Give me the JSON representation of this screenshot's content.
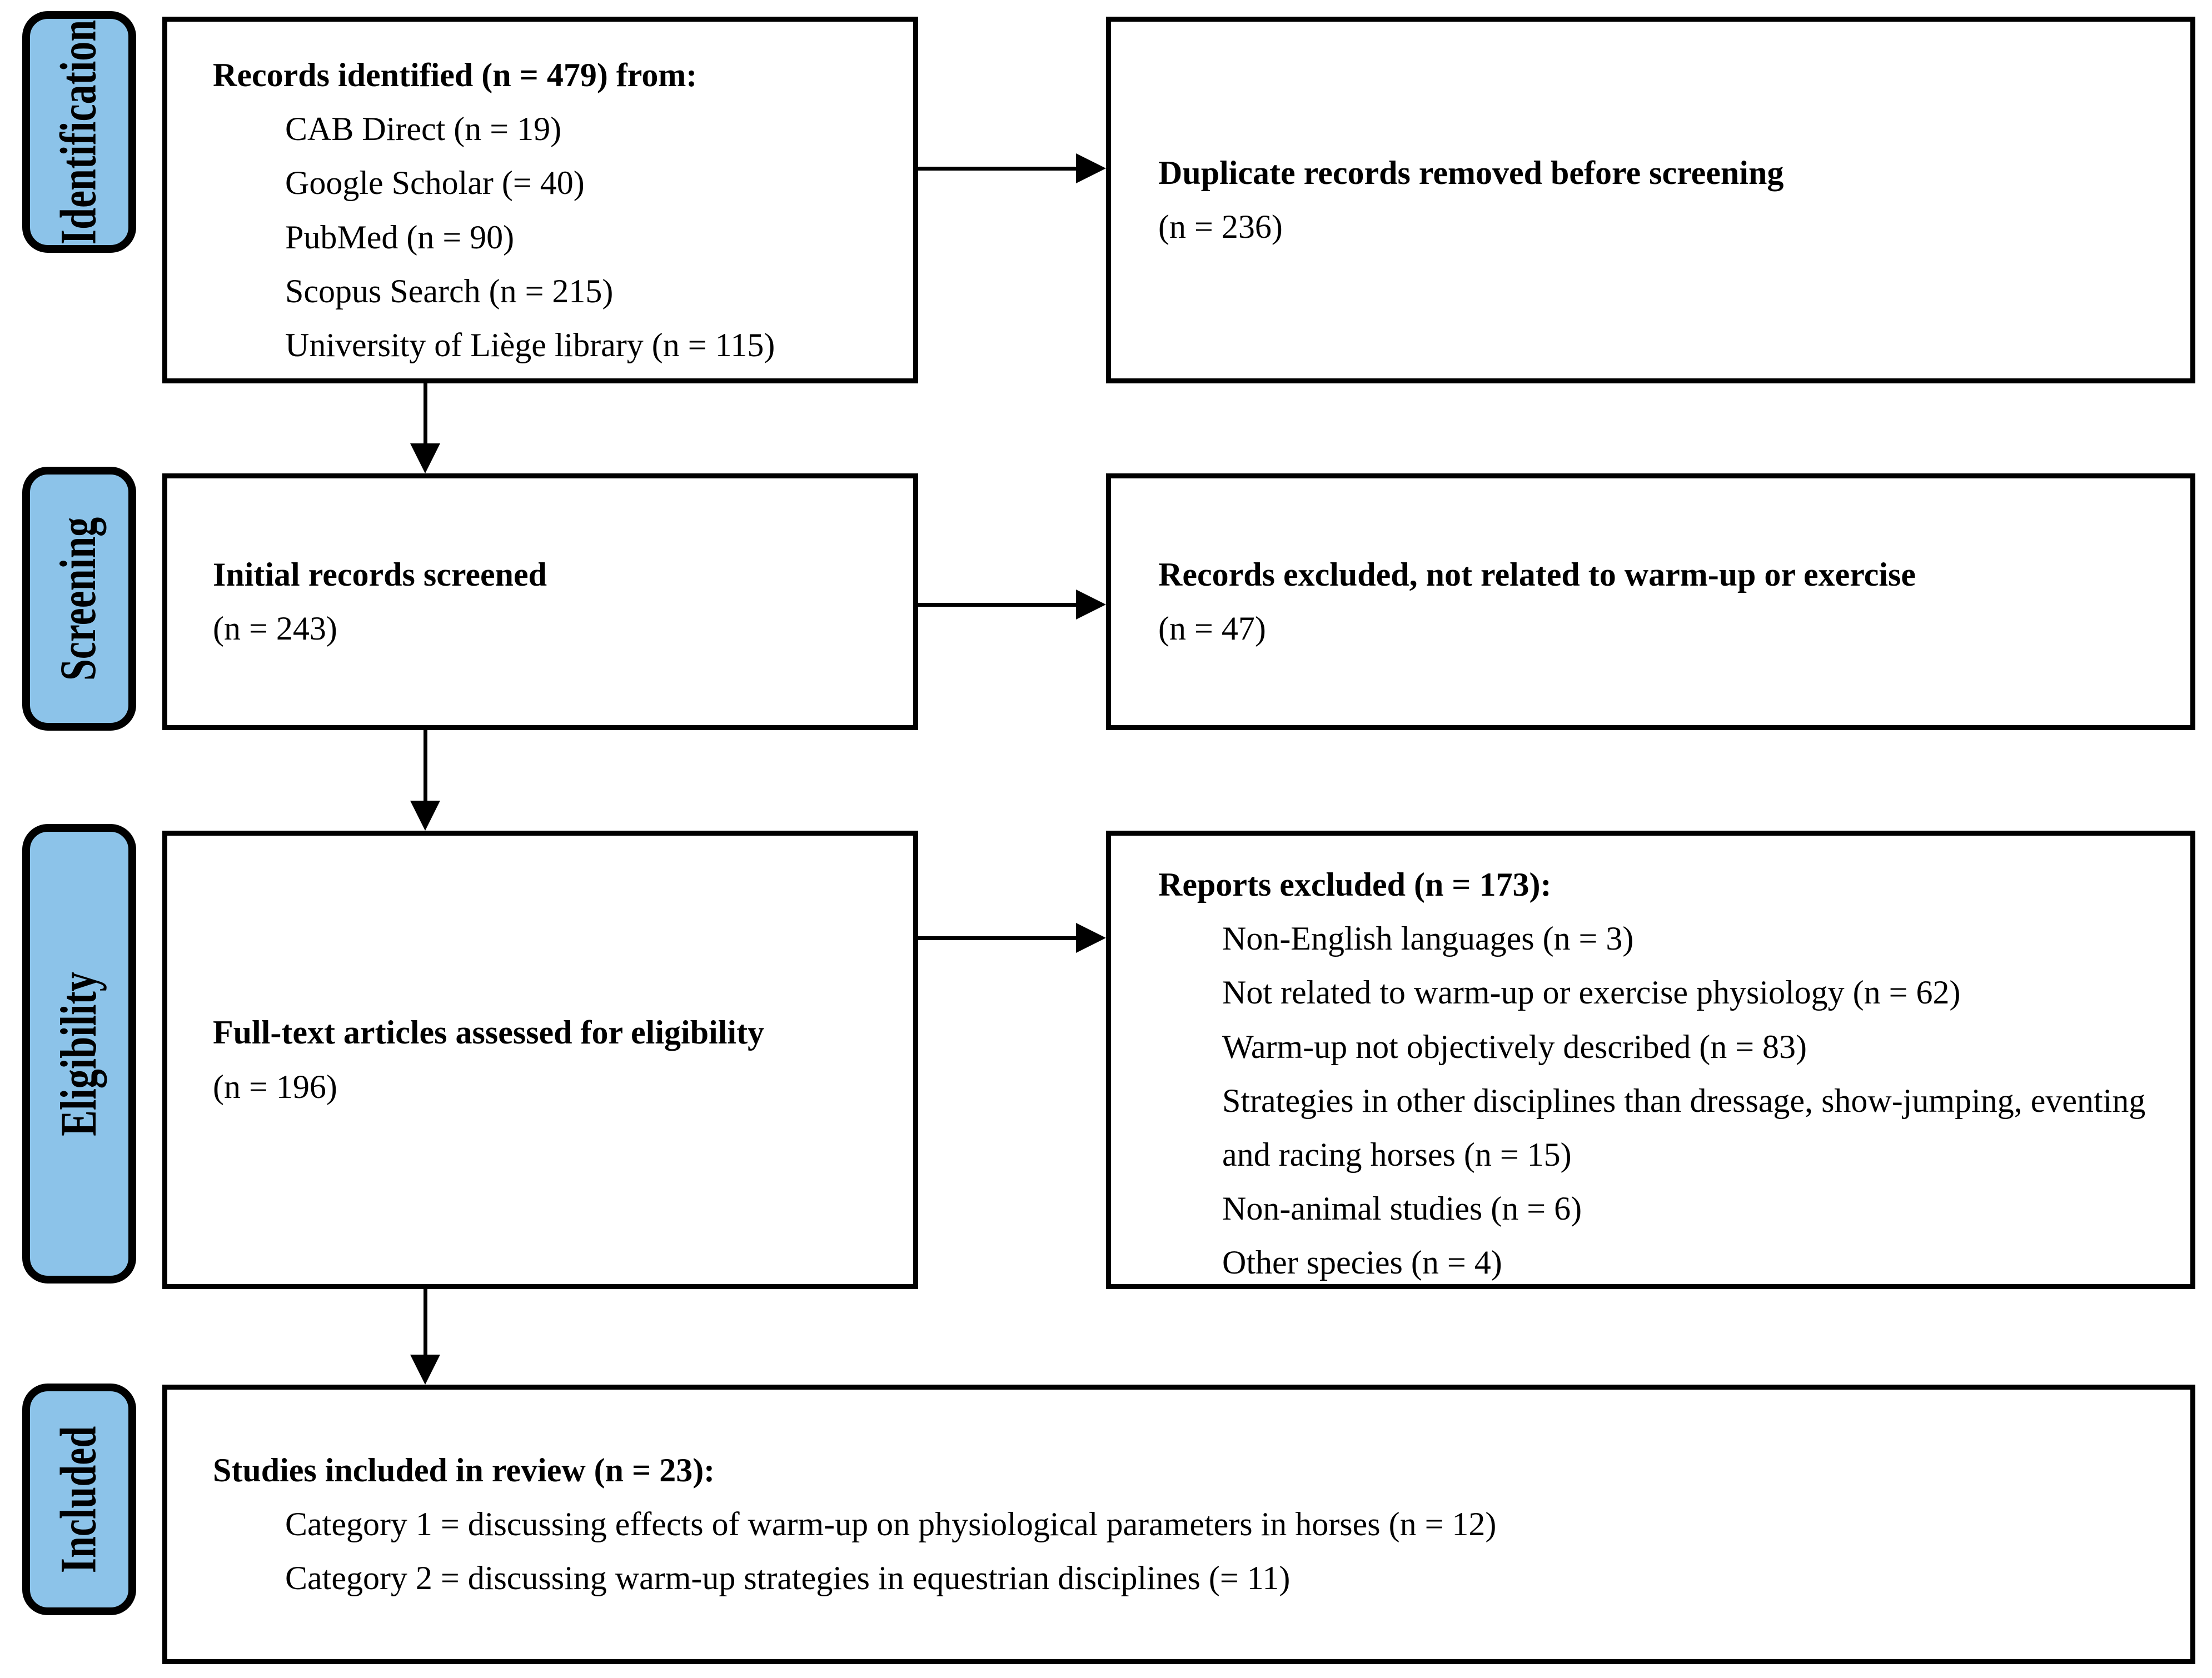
{
  "figure": {
    "type": "prisma-flow-diagram",
    "colors": {
      "stage_fill": "#8CC3E9",
      "line": "#000000",
      "box_fill": "#ffffff"
    }
  },
  "stages": [
    {
      "label": "Identification"
    },
    {
      "label": "Screening"
    },
    {
      "label": "Eligibility"
    },
    {
      "label": "Included"
    }
  ],
  "boxes": {
    "identified": {
      "title": "Records identified (n = 479) from:",
      "items": [
        "CAB Direct (n = 19)",
        "Google Scholar (= 40)",
        "PubMed (n = 90)",
        "Scopus Search (n = 215)",
        "University of Liège library (n = 115)"
      ]
    },
    "duplicates": {
      "title": "Duplicate records removed before screening",
      "count": "(n = 236)"
    },
    "screened": {
      "title": "Initial records screened",
      "count": "(n = 243)"
    },
    "excluded_records": {
      "title": "Records excluded, not related to warm-up or exercise",
      "count": "(n = 47)"
    },
    "fulltext": {
      "title": "Full-text articles assessed for eligibility",
      "count": "(n = 196)"
    },
    "excluded_reports": {
      "title": "Reports excluded (n = 173):",
      "items": [
        "Non-English languages (n = 3)",
        "Not related to warm-up or exercise physiology (n = 62)",
        "Warm-up not objectively described (n = 83)",
        "Strategies in other disciplines than dressage, show-jumping, eventing and racing horses (n = 15)",
        "Non-animal studies (n = 6)",
        "Other species (n = 4)"
      ]
    },
    "included": {
      "title": "Studies included in review (n = 23):",
      "items": [
        "Category 1 = discussing effects of warm-up on physiological parameters in horses (n = 12)",
        "Category 2 = discussing warm-up strategies in equestrian disciplines (= 11)"
      ]
    }
  }
}
